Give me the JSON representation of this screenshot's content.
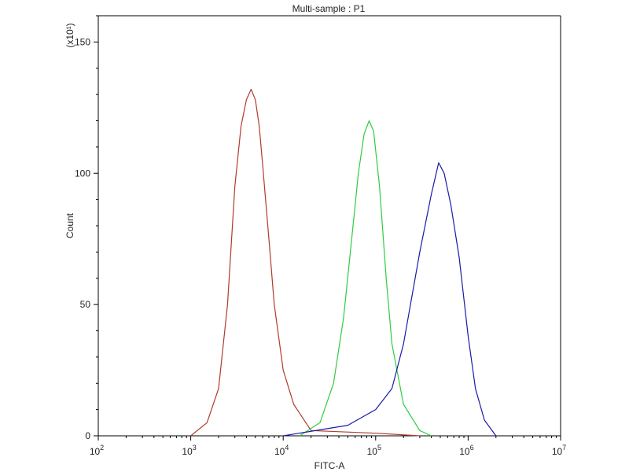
{
  "chart_data": {
    "type": "line",
    "title": "Multi-sample : P1",
    "xlabel": "FITC-A",
    "ylabel": "Count",
    "y_multiplier_label": "(x10¹)",
    "x_scale": "log",
    "xlim": [
      100,
      10000000
    ],
    "ylim": [
      0,
      160
    ],
    "x_ticks": [
      {
        "base": "10",
        "exp": "2"
      },
      {
        "base": "10",
        "exp": "3"
      },
      {
        "base": "10",
        "exp": "4"
      },
      {
        "base": "10",
        "exp": "5"
      },
      {
        "base": "10",
        "exp": "6"
      },
      {
        "base": "10",
        "exp": "7"
      }
    ],
    "y_ticks": [
      "0",
      "50",
      "100",
      "150"
    ],
    "y_tick_values": [
      0,
      50,
      100,
      150
    ],
    "grid": false,
    "legend": "none",
    "series": [
      {
        "color": "#b03a2e",
        "x": [
          1000,
          1500,
          2000,
          2500,
          3000,
          3500,
          4000,
          4500,
          5000,
          5500,
          6000,
          7000,
          8000,
          10000,
          13000,
          20000,
          100000,
          300000
        ],
        "y": [
          0,
          5,
          18,
          50,
          95,
          118,
          128,
          132,
          128,
          118,
          103,
          75,
          50,
          25,
          12,
          2,
          1,
          0
        ]
      },
      {
        "color": "#2ecc40",
        "x": [
          15000,
          25000,
          35000,
          45000,
          55000,
          65000,
          75000,
          85000,
          95000,
          110000,
          130000,
          150000,
          200000,
          300000,
          400000
        ],
        "y": [
          0,
          5,
          20,
          45,
          75,
          100,
          115,
          120,
          116,
          95,
          60,
          35,
          12,
          2,
          0
        ]
      },
      {
        "color": "#1a1aa8",
        "x": [
          10000,
          50000,
          100000,
          150000,
          200000,
          300000,
          400000,
          480000,
          550000,
          650000,
          800000,
          1000000,
          1200000,
          1500000,
          2000000
        ],
        "y": [
          0,
          4,
          10,
          18,
          35,
          70,
          92,
          104,
          100,
          88,
          68,
          38,
          18,
          6,
          0
        ]
      }
    ]
  }
}
